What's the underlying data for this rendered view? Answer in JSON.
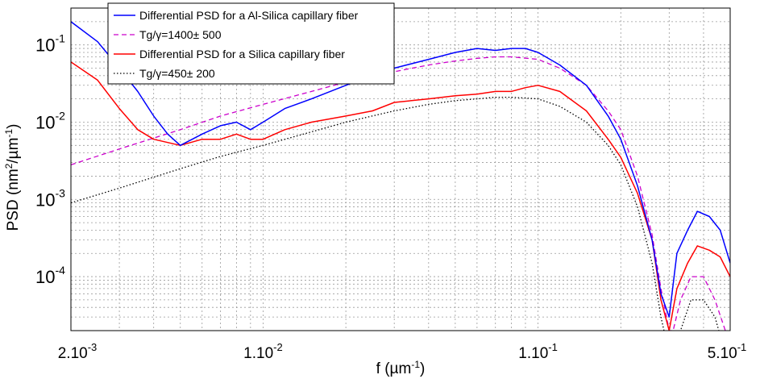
{
  "chart_data": {
    "type": "line",
    "scale": {
      "x": "log",
      "y": "log"
    },
    "grid": true,
    "xlim": [
      0.002,
      0.5
    ],
    "ylim": [
      2e-05,
      0.3
    ],
    "xlabel": "f (µm",
    "xlabel_sup": "-1",
    "xlabel_end": ")",
    "ylabel": "PSD (nm",
    "ylabel_sup1": "2",
    "ylabel_mid": "/µm",
    "ylabel_sup2": "-1",
    "ylabel_end": ")",
    "x_ticks": [
      {
        "value": 0.002,
        "base": "2.10",
        "exp": "-3"
      },
      {
        "value": 0.01,
        "base": "1.10",
        "exp": "-2"
      },
      {
        "value": 0.1,
        "base": "1.10",
        "exp": "-1"
      },
      {
        "value": 0.5,
        "base": "5.10",
        "exp": "-1"
      }
    ],
    "y_ticks": [
      {
        "value": 0.1,
        "base": "10",
        "exp": "-1"
      },
      {
        "value": 0.01,
        "base": "10",
        "exp": "-2"
      },
      {
        "value": 0.001,
        "base": "10",
        "exp": "-3"
      },
      {
        "value": 0.0001,
        "base": "10",
        "exp": "-4"
      }
    ],
    "legend_position": "top-left",
    "series": [
      {
        "name": "Differential PSD for a Al-Silica capillary fiber",
        "color": "#0000ff",
        "style": "solid",
        "x": [
          0.002,
          0.0025,
          0.003,
          0.0035,
          0.004,
          0.0045,
          0.005,
          0.006,
          0.007,
          0.008,
          0.009,
          0.01,
          0.012,
          0.015,
          0.02,
          0.025,
          0.03,
          0.04,
          0.05,
          0.06,
          0.07,
          0.08,
          0.09,
          0.1,
          0.12,
          0.15,
          0.18,
          0.2,
          0.23,
          0.26,
          0.28,
          0.3,
          0.32,
          0.35,
          0.38,
          0.42,
          0.46,
          0.5
        ],
        "y": [
          0.2,
          0.11,
          0.05,
          0.025,
          0.012,
          0.007,
          0.005,
          0.007,
          0.009,
          0.01,
          0.008,
          0.01,
          0.015,
          0.02,
          0.03,
          0.04,
          0.05,
          0.065,
          0.08,
          0.09,
          0.085,
          0.09,
          0.09,
          0.08,
          0.055,
          0.03,
          0.012,
          0.006,
          0.0015,
          0.0003,
          6e-05,
          3e-05,
          0.0002,
          0.0004,
          0.0007,
          0.0006,
          0.0004,
          0.00015
        ]
      },
      {
        "name": "Tg/γ=1400± 500",
        "color": "#cc00cc",
        "style": "dashed",
        "x": [
          0.002,
          0.003,
          0.005,
          0.007,
          0.01,
          0.015,
          0.02,
          0.03,
          0.04,
          0.05,
          0.06,
          0.07,
          0.08,
          0.1,
          0.12,
          0.15,
          0.18,
          0.2,
          0.23,
          0.26,
          0.28,
          0.3,
          0.31,
          0.33,
          0.36,
          0.4,
          0.44,
          0.48
        ],
        "y": [
          0.0028,
          0.0045,
          0.008,
          0.012,
          0.017,
          0.025,
          0.033,
          0.045,
          0.055,
          0.062,
          0.067,
          0.07,
          0.07,
          0.065,
          0.05,
          0.03,
          0.014,
          0.008,
          0.002,
          0.00035,
          7e-05,
          2e-05,
          2e-05,
          5e-05,
          0.0001,
          0.0001,
          5e-05,
          2e-05
        ]
      },
      {
        "name": "Differential PSD for a Silica capillary fiber",
        "color": "#ff0000",
        "style": "solid",
        "x": [
          0.002,
          0.0025,
          0.003,
          0.0035,
          0.004,
          0.005,
          0.006,
          0.007,
          0.008,
          0.009,
          0.01,
          0.012,
          0.015,
          0.02,
          0.025,
          0.03,
          0.04,
          0.05,
          0.06,
          0.07,
          0.08,
          0.09,
          0.1,
          0.12,
          0.15,
          0.18,
          0.2,
          0.23,
          0.26,
          0.28,
          0.3,
          0.32,
          0.35,
          0.38,
          0.42,
          0.46,
          0.5
        ],
        "y": [
          0.06,
          0.035,
          0.015,
          0.008,
          0.006,
          0.005,
          0.006,
          0.006,
          0.007,
          0.006,
          0.006,
          0.008,
          0.01,
          0.012,
          0.014,
          0.018,
          0.02,
          0.022,
          0.023,
          0.025,
          0.025,
          0.028,
          0.03,
          0.025,
          0.014,
          0.006,
          0.0035,
          0.0012,
          0.0003,
          5e-05,
          2e-05,
          7e-05,
          0.00015,
          0.00025,
          0.00022,
          0.00018,
          0.0001
        ]
      },
      {
        "name": "Tg/γ=450± 200",
        "color": "#000000",
        "style": "dotted",
        "x": [
          0.002,
          0.003,
          0.005,
          0.007,
          0.01,
          0.015,
          0.02,
          0.03,
          0.04,
          0.05,
          0.06,
          0.07,
          0.08,
          0.1,
          0.12,
          0.15,
          0.18,
          0.2,
          0.23,
          0.26,
          0.28,
          0.3,
          0.31,
          0.33,
          0.36,
          0.4,
          0.44,
          0.48
        ],
        "y": [
          0.0009,
          0.0014,
          0.0025,
          0.0036,
          0.005,
          0.0075,
          0.01,
          0.014,
          0.017,
          0.019,
          0.02,
          0.021,
          0.021,
          0.02,
          0.016,
          0.01,
          0.005,
          0.0028,
          0.0008,
          0.00015,
          3e-05,
          1e-05,
          1e-05,
          2e-05,
          5e-05,
          5e-05,
          3e-05,
          1e-05
        ]
      }
    ]
  }
}
